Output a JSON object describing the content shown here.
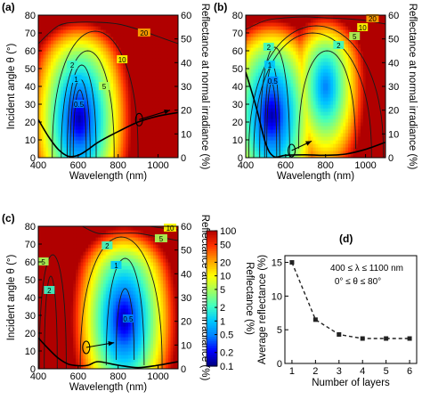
{
  "chart_data": [
    {
      "panel": "(a)",
      "type": "heatmap",
      "xlabel": "Wavelength (nm)",
      "ylabel": "Incident angle θ (°)",
      "y2label": "Reflectance at normal irradiance (%)",
      "xlim": [
        400,
        1100
      ],
      "ylim": [
        0,
        80
      ],
      "y2lim": [
        0,
        60
      ],
      "xticks": [
        400,
        600,
        800,
        1000
      ],
      "yticks": [
        0,
        10,
        20,
        30,
        40,
        50,
        60,
        70,
        80
      ],
      "y2ticks": [
        0,
        10,
        20,
        30,
        40,
        50,
        60
      ],
      "contour_labels": [
        "20",
        "10",
        "5",
        "2",
        "1",
        "0.5"
      ],
      "min_center": {
        "x": 605,
        "y": 22
      },
      "contour_rings": [
        {
          "label": "0.5",
          "value": 0.5,
          "x": [
            575,
            640
          ],
          "y": [
            0,
            38
          ],
          "label_at": [
            603,
            30
          ]
        },
        {
          "label": "1",
          "value": 1,
          "x": [
            560,
            660
          ],
          "y": [
            0,
            44
          ],
          "label_at": [
            590,
            44
          ]
        },
        {
          "label": "2",
          "value": 2,
          "x": [
            545,
            690
          ],
          "y": [
            0,
            52
          ],
          "label_at": [
            570,
            52
          ]
        },
        {
          "label": "5",
          "value": 5,
          "x": [
            515,
            780
          ],
          "y": [
            0,
            60
          ],
          "label_at": [
            730,
            40
          ]
        },
        {
          "label": "10",
          "value": 10,
          "x": [
            470,
            900
          ],
          "y": [
            0,
            71
          ],
          "label_at": [
            820,
            55
          ]
        }
      ],
      "contour_20": {
        "x": [
          400,
          500,
          600,
          700,
          800,
          900,
          1000,
          1100
        ],
        "y": [
          64,
          74,
          76,
          76,
          75,
          72,
          68,
          64
        ],
        "label_at": [
          930,
          70
        ]
      },
      "normal_reflectance_curve": {
        "x": [
          400,
          450,
          500,
          550,
          600,
          650,
          700,
          800,
          900,
          1000,
          1100
        ],
        "y": [
          16,
          9,
          3.5,
          0.6,
          1.0,
          3.5,
          6.5,
          11,
          15,
          17.5,
          19
        ]
      },
      "arrow": {
        "x": [
          905,
          1060
        ],
        "y": [
          16,
          20
        ]
      }
    },
    {
      "panel": "(b)",
      "type": "heatmap",
      "xlabel": "Wavelength (nm)",
      "ylabel": "",
      "y2label": "Reflectance at normal irradiance (%)",
      "xlim": [
        400,
        1100
      ],
      "ylim": [
        0,
        80
      ],
      "y2lim": [
        0,
        60
      ],
      "xticks": [
        400,
        600,
        800,
        1000
      ],
      "yticks": [
        0,
        10,
        20,
        30,
        40,
        50,
        60,
        70,
        80
      ],
      "y2ticks": [
        0,
        10,
        20,
        30,
        40,
        50,
        60
      ],
      "contour_labels": [
        "20",
        "10",
        "5",
        "2",
        "2",
        "1",
        "0.5"
      ],
      "min_center": {
        "x": 530,
        "y": 24
      },
      "second_min_center": {
        "x": 800,
        "y": 40
      },
      "contour_rings": [
        {
          "label": "0.5",
          "value": 0.5,
          "x": [
            505,
            555
          ],
          "y": [
            0,
            42
          ],
          "label_at": [
            535,
            43
          ]
        },
        {
          "label": "1",
          "value": 1,
          "x": [
            495,
            570
          ],
          "y": [
            0,
            52
          ],
          "label_at": [
            520,
            52
          ]
        },
        {
          "label": "2",
          "value": 2,
          "x": [
            470,
            620
          ],
          "y": [
            0,
            62
          ],
          "label_at": [
            515,
            62
          ]
        },
        {
          "label": "2",
          "value": 2,
          "x": [
            665,
            950
          ],
          "y": [
            5,
            60
          ],
          "label_at": [
            865,
            63
          ]
        },
        {
          "label": "5",
          "value": 5,
          "x": [
            440,
            1030
          ],
          "y": [
            0,
            70
          ],
          "label_at": [
            945,
            68
          ]
        },
        {
          "label": "10",
          "value": 10,
          "x": [
            415,
            1090
          ],
          "y": [
            0,
            74
          ],
          "label_at": [
            985,
            73
          ]
        }
      ],
      "contour_20": {
        "x": [
          400,
          500,
          600,
          700,
          800,
          900,
          1000,
          1100
        ],
        "y": [
          72,
          77,
          78.5,
          79,
          78.5,
          78,
          77,
          75
        ],
        "label_at": [
          1035,
          78
        ]
      },
      "normal_reflectance_curve": {
        "x": [
          400,
          450,
          500,
          540,
          600,
          700,
          800,
          900,
          1000,
          1100
        ],
        "y": [
          36,
          22,
          6,
          0.5,
          1.0,
          1.2,
          1.0,
          1.5,
          3.5,
          6.5
        ]
      },
      "arrow": {
        "x": [
          630,
          730
        ],
        "y": [
          3,
          7
        ]
      }
    },
    {
      "panel": "(c)",
      "type": "heatmap",
      "xlabel": "Wavelength (nm)",
      "ylabel": "Incident angle θ (°)",
      "y2label": "Reflectance at normal irradiance (%)",
      "xlim": [
        400,
        1100
      ],
      "ylim": [
        0,
        80
      ],
      "y2lim": [
        0,
        60
      ],
      "xticks": [
        400,
        600,
        800,
        1000
      ],
      "yticks": [
        0,
        10,
        20,
        30,
        40,
        50,
        60,
        70,
        80
      ],
      "y2ticks": [
        0,
        10,
        20,
        30,
        40,
        50,
        60
      ],
      "contour_labels": [
        "10",
        "5",
        "2",
        "1",
        "0.5",
        "2",
        "5"
      ],
      "min_center": {
        "x": 830,
        "y": 28
      },
      "contour_rings": [
        {
          "label": "0.5",
          "value": 0.5,
          "x": [
            790,
            880
          ],
          "y": [
            5,
            45
          ],
          "label_at": [
            850,
            28
          ]
        },
        {
          "label": "1",
          "value": 1,
          "x": [
            740,
            930
          ],
          "y": [
            2,
            62
          ],
          "label_at": [
            790,
            58
          ]
        },
        {
          "label": "2",
          "value": 2,
          "x": [
            610,
            1020
          ],
          "y": [
            0,
            74
          ],
          "label_at": [
            745,
            69
          ]
        },
        {
          "label": "2",
          "value": 2,
          "x": [
            430,
            495
          ],
          "y": [
            0,
            52
          ],
          "label_at": [
            455,
            44
          ]
        },
        {
          "label": "5",
          "value": 5,
          "x": [
            405,
            540
          ],
          "y": [
            0,
            64
          ],
          "label_at": [
            425,
            60
          ]
        }
      ],
      "contour_5": {
        "x": [
          620,
          700,
          800,
          900,
          1000,
          1050,
          1100
        ],
        "y": [
          80,
          76,
          76,
          76,
          74,
          73,
          72
        ],
        "label_at": [
          1015,
          73
        ]
      },
      "contour_10": {
        "x": [
          960,
          1020,
          1100
        ],
        "y": [
          80,
          79,
          78
        ],
        "label_at": [
          1060,
          79
        ]
      },
      "normal_reflectance_curve": {
        "x": [
          400,
          450,
          500,
          550,
          600,
          650,
          700,
          800,
          900,
          1000,
          1100
        ],
        "y": [
          13,
          8.5,
          4.5,
          2.0,
          1.3,
          1.5,
          3.0,
          1.5,
          0.5,
          1.5,
          3.0
        ]
      },
      "arrow": {
        "x": [
          640,
          780
        ],
        "y": [
          9,
          11
        ]
      }
    },
    {
      "panel": "colorbar",
      "type": "heatmap",
      "label": "Reflectance (%)",
      "scale": "log",
      "range": [
        0.1,
        100
      ],
      "ticks": [
        "100",
        "50",
        "20",
        "10",
        "5",
        "2",
        "1",
        "0.5",
        "0.2",
        "0.1"
      ],
      "tick_values": [
        100,
        50,
        20,
        10,
        5,
        2,
        1,
        0.5,
        0.2,
        0.1
      ],
      "colormap": [
        "#00007f",
        "#0000ff",
        "#0080ff",
        "#00c8ff",
        "#40ffc0",
        "#a0ff60",
        "#ffff00",
        "#ffa000",
        "#ff3000",
        "#b00000"
      ]
    },
    {
      "panel": "(d)",
      "type": "line",
      "xlabel": "Number of layers",
      "ylabel": "Average reflectance (%)",
      "x": [
        1,
        2,
        3,
        4,
        5,
        6
      ],
      "series": [
        {
          "values": [
            15.0,
            6.5,
            4.3,
            3.7,
            3.7,
            3.7
          ],
          "style": "dashed",
          "marker": "square",
          "color": "#222222"
        }
      ],
      "xlim": [
        0.7,
        6.3
      ],
      "ylim": [
        0,
        16
      ],
      "xticks": [
        1,
        2,
        3,
        4,
        5,
        6
      ],
      "yticks": [
        0,
        5,
        10,
        15
      ],
      "annotations": [
        "400 ≤ λ ≤ 1100 nm",
        "0° ≤ θ ≤ 80°"
      ]
    }
  ]
}
